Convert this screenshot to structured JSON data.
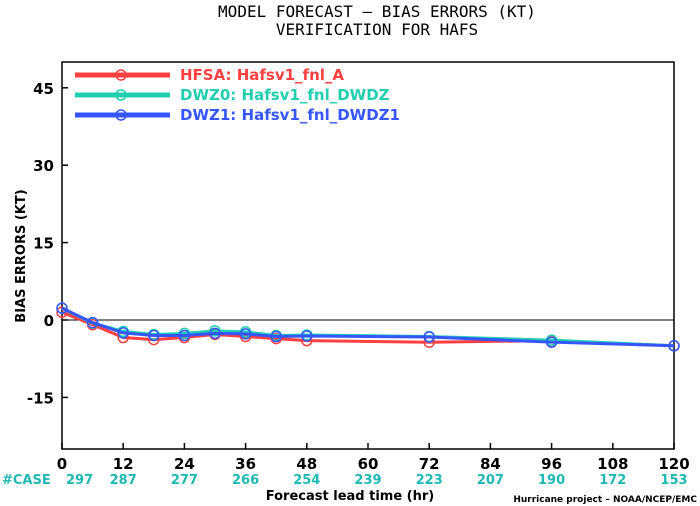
{
  "chart_data": {
    "type": "line",
    "title": "MODEL FORECAST – BIAS ERRORS (KT)",
    "subtitle": "VERIFICATION FOR HAFS",
    "xlabel": "Forecast lead time (hr)",
    "ylabel": "BIAS ERRORS (KT)",
    "xlim": [
      0,
      120
    ],
    "ylim": [
      -25,
      50
    ],
    "x_ticks": [
      0,
      12,
      24,
      36,
      48,
      60,
      72,
      84,
      96,
      108,
      120
    ],
    "y_ticks": [
      -15,
      0,
      15,
      30,
      45
    ],
    "zero_line": true,
    "legend_position": "top-left",
    "series": [
      {
        "name": "HFSA: Hafsv1_fnl_A",
        "color": "#ff4040",
        "x": [
          0,
          6,
          12,
          18,
          24,
          30,
          36,
          42,
          48,
          72,
          96,
          120
        ],
        "y": [
          1.5,
          -0.9,
          -3.4,
          -3.8,
          -3.4,
          -2.8,
          -3.2,
          -3.6,
          -4.0,
          -4.3,
          -4.0,
          -5.0
        ]
      },
      {
        "name": "DWZ0: Hafsv1_fnl_DWDZ",
        "color": "#1fcfb0",
        "x": [
          0,
          6,
          12,
          18,
          24,
          30,
          36,
          42,
          48,
          72,
          96,
          120
        ],
        "y": [
          2.3,
          -0.6,
          -2.2,
          -2.8,
          -2.6,
          -2.1,
          -2.3,
          -3.0,
          -2.9,
          -3.2,
          -3.9,
          -5.0
        ]
      },
      {
        "name": "DWZ1: Hafsv1_fnl_DWDZ1",
        "color": "#3555ff",
        "x": [
          0,
          6,
          12,
          18,
          24,
          30,
          36,
          42,
          48,
          72,
          96,
          120
        ],
        "y": [
          2.3,
          -0.5,
          -2.5,
          -3.0,
          -3.0,
          -2.6,
          -2.7,
          -3.2,
          -3.1,
          -3.3,
          -4.3,
          -5.0
        ]
      }
    ],
    "case_counts": {
      "label": "#CASE",
      "x": [
        0,
        12,
        24,
        36,
        48,
        60,
        72,
        84,
        96,
        108,
        120
      ],
      "values": [
        297,
        287,
        277,
        266,
        254,
        239,
        223,
        207,
        190,
        172,
        153
      ]
    },
    "credit": "Hurricane project – NOAA/NCEP/EMC"
  }
}
